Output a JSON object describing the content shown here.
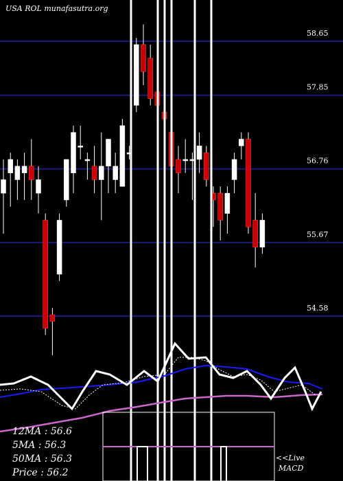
{
  "chart_data": {
    "type": "candlestick",
    "title": "USA ROL munafasutra.org",
    "y_ticks": [
      58.65,
      57.85,
      56.76,
      55.67,
      54.58
    ],
    "y_tick_labels": [
      "58.65",
      "57.85",
      "56.76",
      "55.67",
      "54.58"
    ],
    "ylim": [
      54.2,
      59.2
    ],
    "grid": true,
    "colors": {
      "up": "#ffffff",
      "down": "#cc0000",
      "background": "#000000",
      "grid": "#1a1a7a"
    },
    "candles": [
      {
        "open": 56.4,
        "high": 56.9,
        "low": 55.8,
        "close": 56.6
      },
      {
        "open": 56.7,
        "high": 57.0,
        "low": 56.2,
        "close": 56.9
      },
      {
        "open": 56.6,
        "high": 56.9,
        "low": 56.3,
        "close": 56.8
      },
      {
        "open": 56.7,
        "high": 57.0,
        "low": 56.3,
        "close": 56.8
      },
      {
        "open": 56.8,
        "high": 57.2,
        "low": 56.3,
        "close": 56.6
      },
      {
        "open": 56.4,
        "high": 56.8,
        "low": 56.1,
        "close": 56.6
      },
      {
        "open": 56.0,
        "high": 56.1,
        "low": 54.3,
        "close": 54.4
      },
      {
        "open": 54.6,
        "high": 54.7,
        "low": 54.0,
        "close": 54.5
      },
      {
        "open": 55.2,
        "high": 56.1,
        "low": 55.1,
        "close": 56.0
      },
      {
        "open": 56.3,
        "high": 56.9,
        "low": 56.2,
        "close": 56.9
      },
      {
        "open": 56.7,
        "high": 57.4,
        "low": 56.4,
        "close": 57.3
      },
      {
        "open": 57.1,
        "high": 57.4,
        "low": 56.9,
        "close": 57.1
      },
      {
        "open": 56.9,
        "high": 57.0,
        "low": 56.6,
        "close": 56.9
      },
      {
        "open": 56.8,
        "high": 57.1,
        "low": 56.4,
        "close": 56.6
      },
      {
        "open": 56.6,
        "high": 57.3,
        "low": 56.0,
        "close": 56.8
      },
      {
        "open": 56.8,
        "high": 57.2,
        "low": 56.4,
        "close": 57.2
      },
      {
        "open": 56.6,
        "high": 57.0,
        "low": 56.4,
        "close": 56.8
      },
      {
        "open": 56.5,
        "high": 57.5,
        "low": 56.5,
        "close": 57.4
      },
      {
        "open": 57.0,
        "high": 57.1,
        "low": 56.9,
        "close": 57.0
      },
      {
        "open": 57.7,
        "high": 58.7,
        "low": 57.6,
        "close": 58.6
      },
      {
        "open": 58.6,
        "high": 58.9,
        "low": 58.0,
        "close": 58.2
      },
      {
        "open": 58.4,
        "high": 58.6,
        "low": 57.7,
        "close": 57.8
      },
      {
        "open": 57.9,
        "high": 58.3,
        "low": 57.2,
        "close": 57.7
      },
      {
        "open": 57.6,
        "high": 57.9,
        "low": 56.9,
        "close": 57.5
      },
      {
        "open": 57.3,
        "high": 57.6,
        "low": 56.5,
        "close": 56.8
      },
      {
        "open": 56.9,
        "high": 57.1,
        "low": 56.4,
        "close": 56.7
      },
      {
        "open": 56.9,
        "high": 57.2,
        "low": 56.7,
        "close": 56.9
      },
      {
        "open": 56.9,
        "high": 57.0,
        "low": 56.3,
        "close": 56.9
      },
      {
        "open": 56.9,
        "high": 57.3,
        "low": 56.7,
        "close": 57.1
      },
      {
        "open": 57.0,
        "high": 57.1,
        "low": 56.5,
        "close": 56.6
      },
      {
        "open": 56.4,
        "high": 56.5,
        "low": 55.9,
        "close": 56.3
      },
      {
        "open": 56.4,
        "high": 56.5,
        "low": 55.7,
        "close": 56.0
      },
      {
        "open": 56.1,
        "high": 56.5,
        "low": 55.8,
        "close": 56.4
      },
      {
        "open": 56.6,
        "high": 57.0,
        "low": 56.4,
        "close": 56.9
      },
      {
        "open": 57.1,
        "high": 57.3,
        "low": 56.9,
        "close": 57.2
      },
      {
        "open": 57.2,
        "high": 57.3,
        "low": 55.8,
        "close": 55.9
      },
      {
        "open": 56.0,
        "high": 56.4,
        "low": 55.3,
        "close": 55.6
      },
      {
        "open": 55.6,
        "high": 56.1,
        "low": 55.5,
        "close": 56.0
      }
    ],
    "indicators": {
      "labels": [
        "12MA : 56.6",
        "5MA : 56.3",
        "50MA : 56.3",
        "Price   : 56.2"
      ],
      "macd_label_line1": "<<Live",
      "macd_label_line2": "MACD"
    }
  }
}
